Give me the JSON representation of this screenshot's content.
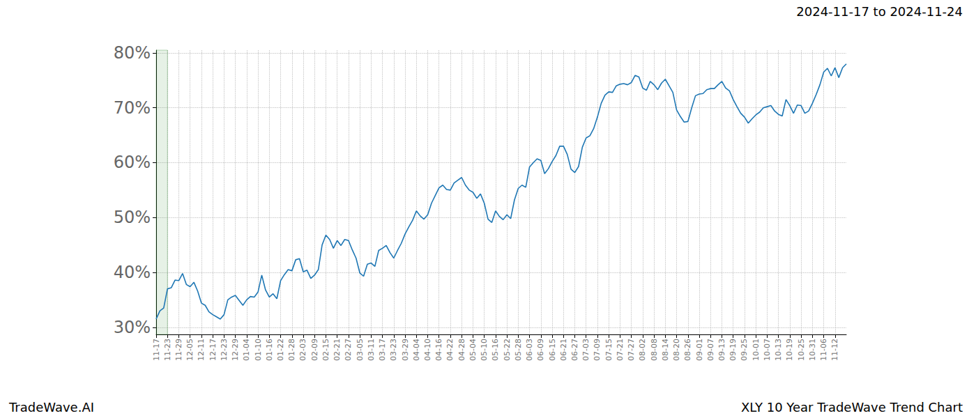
{
  "chart_data": {
    "type": "line",
    "title": "2024-11-17 to 2024-11-24",
    "annotations": [
      "TradeWave.AI",
      "XLY 10 Year TradeWave Trend Chart"
    ],
    "categories": [
      "11-17",
      null,
      null,
      "11-23",
      null,
      null,
      "11-29",
      null,
      null,
      "12-05",
      null,
      null,
      "12-11",
      null,
      null,
      "12-17",
      null,
      null,
      "12-23",
      null,
      null,
      "12-29",
      null,
      null,
      "01-04",
      null,
      null,
      "01-10",
      null,
      null,
      "01-16",
      null,
      null,
      "01-22",
      null,
      null,
      "01-28",
      null,
      null,
      "02-03",
      null,
      null,
      "02-09",
      null,
      null,
      "02-15",
      null,
      null,
      "02-21",
      null,
      null,
      "02-27",
      null,
      null,
      "03-05",
      null,
      null,
      "03-11",
      null,
      null,
      "03-17",
      null,
      null,
      "03-23",
      null,
      null,
      "03-29",
      null,
      null,
      "04-04",
      null,
      null,
      "04-10",
      null,
      null,
      "04-16",
      null,
      null,
      "04-22",
      null,
      null,
      "04-28",
      null,
      null,
      "05-04",
      null,
      null,
      "05-10",
      null,
      null,
      "05-16",
      null,
      null,
      "05-22",
      null,
      null,
      "05-28",
      null,
      null,
      "06-03",
      null,
      null,
      "06-09",
      null,
      null,
      "06-15",
      null,
      null,
      "06-21",
      null,
      null,
      "06-27",
      null,
      null,
      "07-03",
      null,
      null,
      "07-09",
      null,
      null,
      "07-15",
      null,
      null,
      "07-21",
      null,
      null,
      "07-27",
      null,
      null,
      "08-02",
      null,
      null,
      "08-08",
      null,
      null,
      "08-14",
      null,
      null,
      "08-20",
      null,
      null,
      "08-26",
      null,
      null,
      "09-01",
      null,
      null,
      "09-07",
      null,
      null,
      "09-13",
      null,
      null,
      "09-19",
      null,
      null,
      "09-25",
      null,
      null,
      "10-01",
      null,
      null,
      "10-07",
      null,
      null,
      "10-13",
      null,
      null,
      "10-19",
      null,
      null,
      "10-25",
      null,
      null,
      "10-31",
      null,
      null,
      "11-06",
      null,
      null,
      "11-12",
      null,
      null,
      null
    ],
    "series": [
      {
        "name": "XLY",
        "color": "#1f77b4",
        "values": [
          31.5,
          33,
          33.5,
          37,
          37.2,
          38.6,
          38.5,
          39.8,
          37.8,
          37.4,
          38.2,
          36.6,
          34.4,
          34,
          32.8,
          32.3,
          31.9,
          31.5,
          32.3,
          35,
          35.5,
          35.8,
          34.9,
          34,
          35,
          35.6,
          35.5,
          36.4,
          39.5,
          36.8,
          35.5,
          36.1,
          35.2,
          38.5,
          39.6,
          40.5,
          40.3,
          42.3,
          42.5,
          40.1,
          40.4,
          38.9,
          39.5,
          40.5,
          45,
          46.8,
          46,
          44.4,
          45.8,
          44.9,
          46,
          45.8,
          44.1,
          42.6,
          39.9,
          39.3,
          41.5,
          41.7,
          41.1,
          44,
          44.4,
          44.9,
          43.6,
          42.6,
          44,
          45.3,
          47,
          48.3,
          49.5,
          51.2,
          50.3,
          49.7,
          50.5,
          52.6,
          54,
          55.4,
          55.9,
          55.1,
          55,
          56.3,
          56.8,
          57.3,
          55.9,
          55,
          54.6,
          53.5,
          54.3,
          52.6,
          49.7,
          49.1,
          51.2,
          50.2,
          49.6,
          50.5,
          49.8,
          53.2,
          55.3,
          55.9,
          55.5,
          59.2,
          60,
          60.7,
          60.4,
          58,
          58.9,
          60.2,
          61.3,
          63,
          63,
          61.5,
          58.8,
          58.2,
          59.3,
          62.8,
          64.5,
          64.9,
          66.2,
          68.3,
          70.8,
          72.3,
          72.9,
          72.8,
          74,
          74.3,
          74.4,
          74.2,
          74.6,
          75.9,
          75.6,
          73.6,
          73.2,
          74.8,
          74.2,
          73.3,
          74.5,
          75.2,
          74,
          72.8,
          69.6,
          68.4,
          67.4,
          67.5,
          70,
          72.2,
          72.5,
          72.6,
          73.3,
          73.5,
          73.5,
          74.2,
          74.8,
          73.6,
          73.1,
          71.5,
          70.2,
          69,
          68.3,
          67.2,
          68,
          68.7,
          69.2,
          70,
          70.2,
          70.4,
          69.4,
          68.8,
          68.5,
          71.5,
          70.4,
          69,
          70.5,
          70.4,
          69,
          69.4,
          70.8,
          72.4,
          74.2,
          76.5,
          77.2,
          75.8,
          77.3,
          75.5,
          77.3,
          78
        ]
      }
    ],
    "highlight": [
      "11-17",
      "11-23"
    ],
    "ylim": [
      28.7,
      80.5
    ],
    "yticks": [
      {
        "value": 30,
        "label": "30%"
      },
      {
        "value": 40,
        "label": "40%"
      },
      {
        "value": 50,
        "label": "50%"
      },
      {
        "value": 60,
        "label": "60%"
      },
      {
        "value": 70,
        "label": "70%"
      },
      {
        "value": 80,
        "label": "80%"
      }
    ],
    "grid": true
  }
}
